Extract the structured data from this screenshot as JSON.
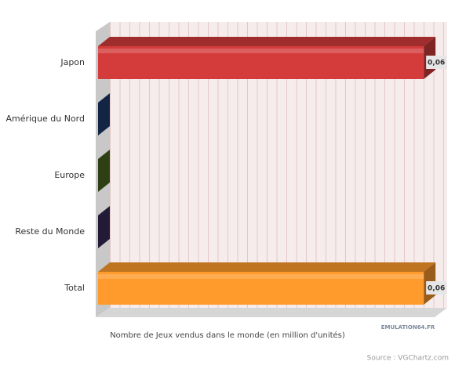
{
  "chart_data": {
    "type": "bar3d",
    "orientation": "horizontal",
    "categories": [
      "Japon",
      "Amérique du Nord",
      "Europe",
      "Reste du Monde",
      "Total"
    ],
    "values": [
      0.06,
      0,
      0,
      0,
      0.06
    ],
    "value_labels": [
      "0,06",
      null,
      null,
      null,
      "0,06"
    ],
    "colors": [
      "#d43c3c",
      "#1f3d73",
      "#4d6b1f",
      "#3b2b5e",
      "#ff9a2c"
    ],
    "xlim": [
      0,
      0.062
    ],
    "xlabel": "Nombre de Jeux vendus dans le monde (en million d'unités)",
    "logo": "EMULATION64.FR",
    "source": "Source : VGChartz.com"
  }
}
